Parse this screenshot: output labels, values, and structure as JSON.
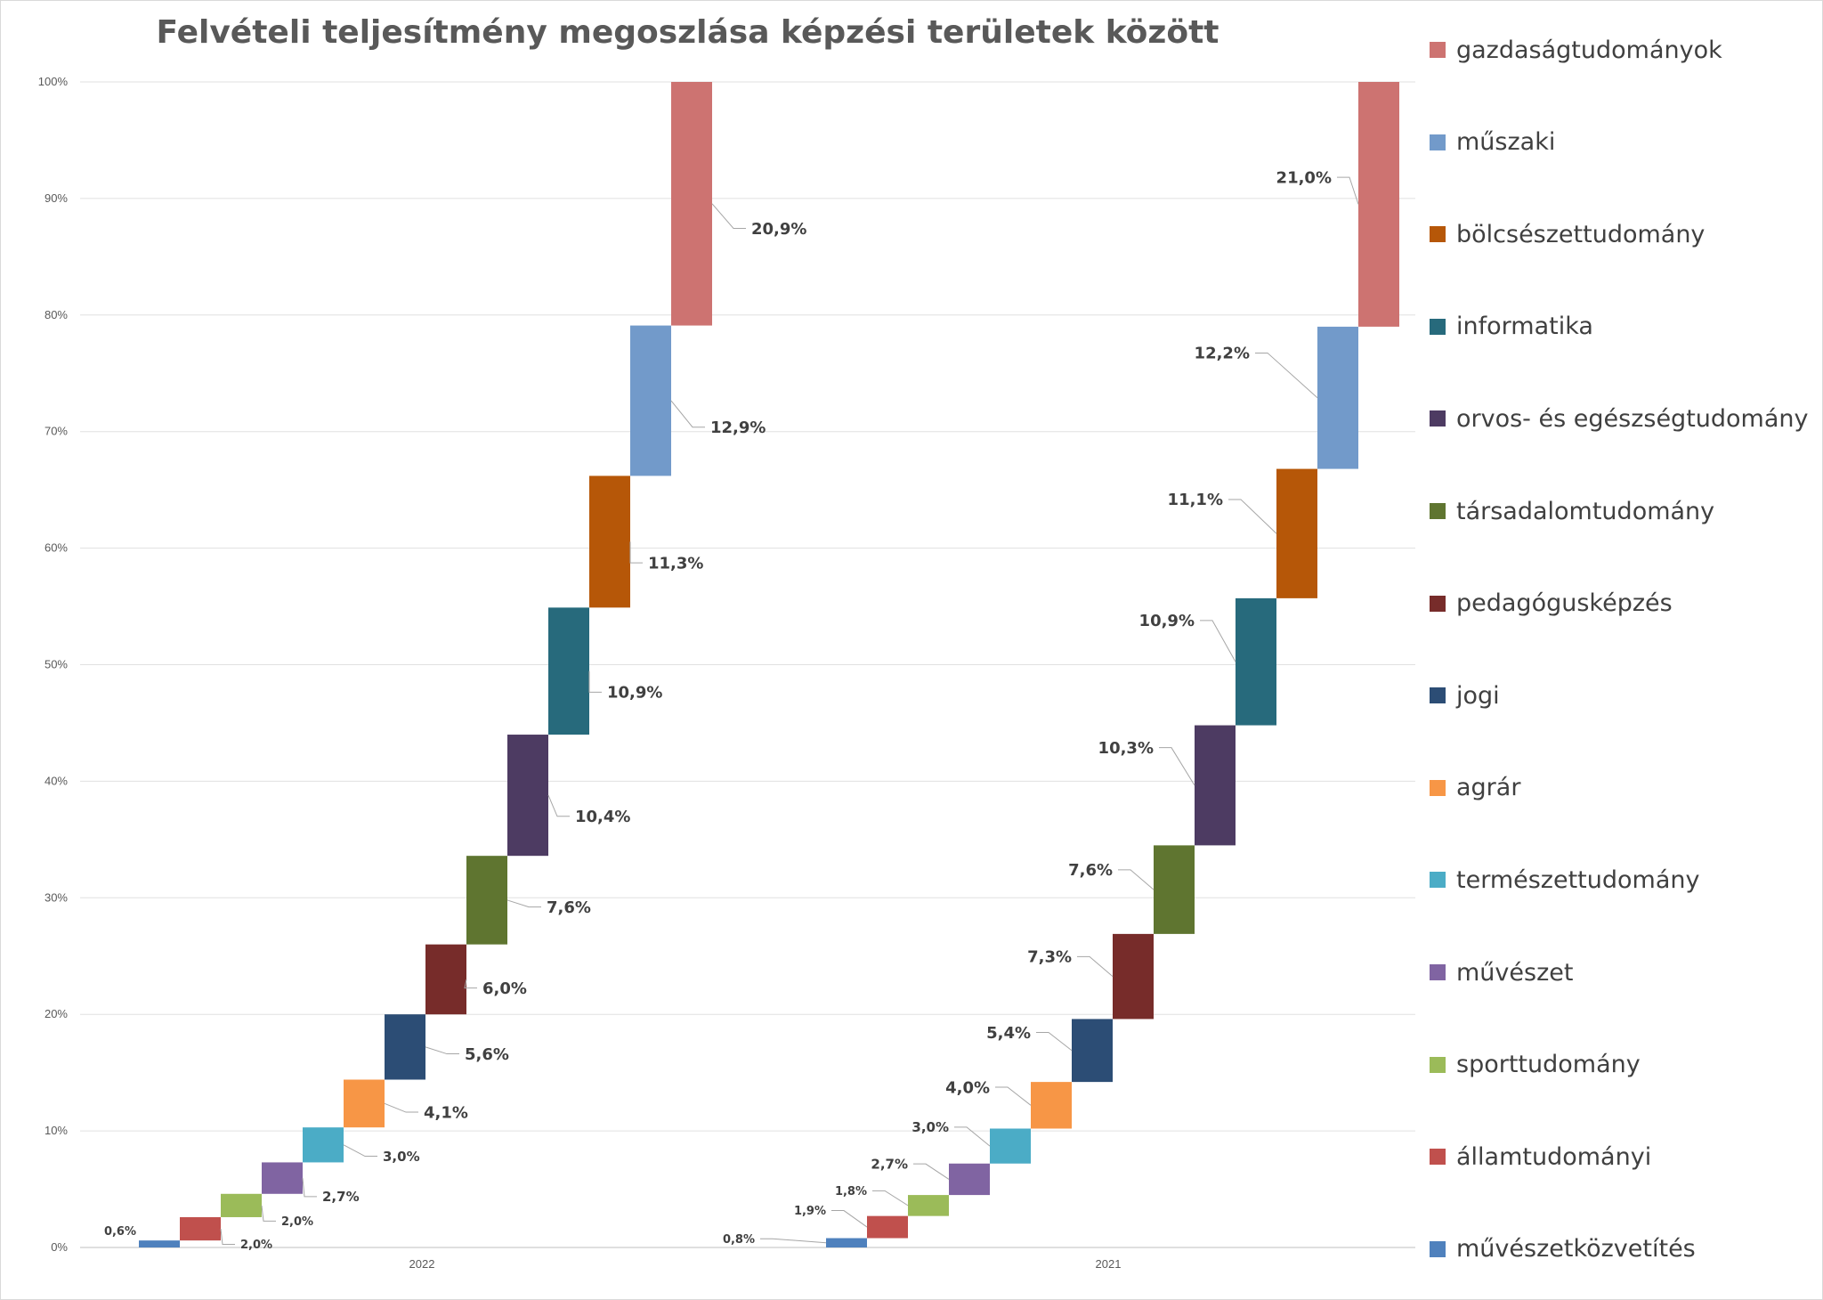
{
  "chart_data": {
    "type": "bar",
    "subtype": "stacked-waterfall",
    "title": "Felvételi teljesítmény megoszlása képzési területek között",
    "xlabel": "",
    "ylabel": "",
    "ylim": [
      0,
      100
    ],
    "y_ticks": [
      "0%",
      "10%",
      "20%",
      "30%",
      "40%",
      "50%",
      "60%",
      "70%",
      "80%",
      "90%",
      "100%"
    ],
    "grid": true,
    "legend_position": "right",
    "categories": [
      "2022",
      "2021"
    ],
    "series": [
      {
        "name": "művészetközvetítés",
        "color": "#4f81bd",
        "values": [
          0.6,
          0.8
        ],
        "labels": [
          "0,6%",
          "0,8%"
        ]
      },
      {
        "name": "államtudományi",
        "color": "#c0504d",
        "values": [
          2.0,
          1.9
        ],
        "labels": [
          "2,0%",
          "1,9%"
        ]
      },
      {
        "name": "sporttudomány",
        "color": "#9bbb59",
        "values": [
          2.0,
          1.8
        ],
        "labels": [
          "2,0%",
          "1,8%"
        ]
      },
      {
        "name": "művészet",
        "color": "#8064a2",
        "values": [
          2.7,
          2.7
        ],
        "labels": [
          "2,7%",
          "2,7%"
        ]
      },
      {
        "name": "természettudomány",
        "color": "#4bacc6",
        "values": [
          3.0,
          3.0
        ],
        "labels": [
          "3,0%",
          "3,0%"
        ]
      },
      {
        "name": "agrár",
        "color": "#f79646",
        "values": [
          4.1,
          4.0
        ],
        "labels": [
          "4,1%",
          "4,0%"
        ]
      },
      {
        "name": "jogi",
        "color": "#2c4d75",
        "values": [
          5.6,
          5.4
        ],
        "labels": [
          "5,6%",
          "5,4%"
        ]
      },
      {
        "name": "pedagógusképzés",
        "color": "#772c2a",
        "values": [
          6.0,
          7.3
        ],
        "labels": [
          "6,0%",
          "7,3%"
        ]
      },
      {
        "name": "társadalomtudomány",
        "color": "#5f7530",
        "values": [
          7.6,
          7.6
        ],
        "labels": [
          "7,6%",
          "7,6%"
        ]
      },
      {
        "name": "orvos- és egészségtudomány",
        "color": "#4d3b62",
        "values": [
          10.4,
          10.3
        ],
        "labels": [
          "10,4%",
          "10,3%"
        ]
      },
      {
        "name": "informatika",
        "color": "#276a7c",
        "values": [
          10.9,
          10.9
        ],
        "labels": [
          "10,9%",
          "10,9%"
        ]
      },
      {
        "name": "bölcsészettudomány",
        "color": "#b65708",
        "values": [
          11.3,
          11.1
        ],
        "labels": [
          "11,3%",
          "11,1%"
        ]
      },
      {
        "name": "műszaki",
        "color": "#729aca",
        "values": [
          12.9,
          12.2
        ],
        "labels": [
          "12,9%",
          "12,2%"
        ]
      },
      {
        "name": "gazdaságtudományok",
        "color": "#cd7371",
        "values": [
          20.9,
          21.0
        ],
        "labels": [
          "20,9%",
          "21,0%"
        ]
      }
    ]
  }
}
